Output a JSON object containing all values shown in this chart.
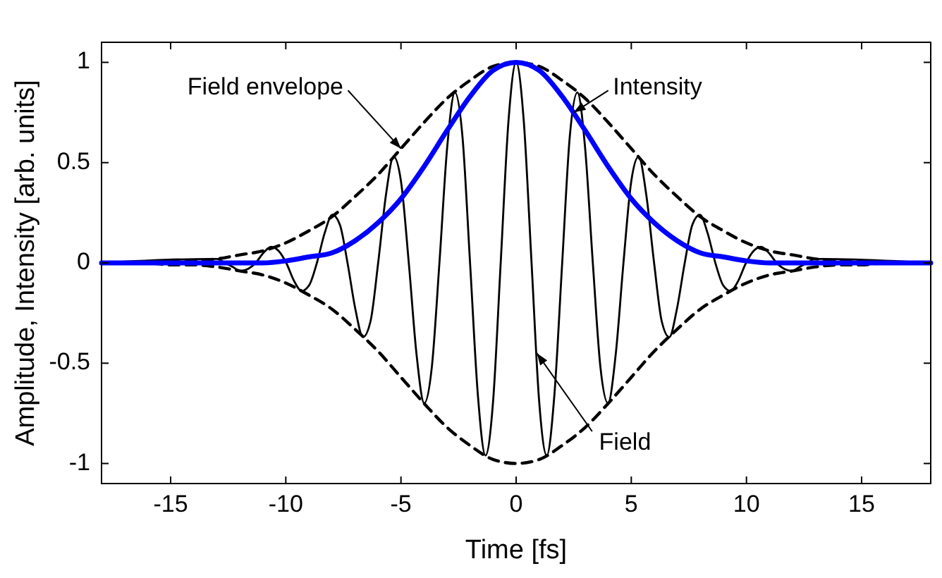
{
  "chart_data": {
    "type": "line",
    "xlabel": "Time [fs]",
    "ylabel": "Amplitude, Intensity [arb. units]",
    "xlim": [
      -18,
      18
    ],
    "ylim": [
      -1.1,
      1.1
    ],
    "xticks": [
      -15,
      -10,
      -5,
      0,
      5,
      10,
      15
    ],
    "yticks": [
      -1,
      -0.5,
      0,
      0.5,
      1
    ],
    "grid": false,
    "marker": "none",
    "annotations": [
      {
        "text": "Field envelope",
        "x": -5,
        "y": 0.57
      },
      {
        "text": "Intensity",
        "x": 2.5,
        "y": 0.75
      },
      {
        "text": "Field",
        "x": 0.9,
        "y": -0.45
      }
    ],
    "series": [
      {
        "color": "#000000",
        "line_style": "solid",
        "x": [
          -18,
          -13.3,
          -12.97,
          -12.64,
          -12.3,
          -11.97,
          -11.64,
          -11.31,
          -10.97,
          -10.64,
          -10.31,
          -9.98,
          -9.64,
          -9.31,
          -8.98,
          -8.65,
          -8.31,
          -7.98,
          -7.65,
          -7.32,
          -6.98,
          -6.65,
          -6.32,
          -5.99,
          -5.65,
          -5.32,
          -4.99,
          -4.66,
          -4.32,
          -3.99,
          -3.66,
          -3.33,
          -2.99,
          -2.66,
          -2.33,
          -2,
          -1.66,
          -1.33,
          -1,
          -0.67,
          -0.33,
          0,
          0.33,
          0.67,
          1,
          1.33,
          1.66,
          2,
          2.33,
          2.66,
          2.99,
          3.33,
          3.66,
          3.99,
          4.32,
          4.66,
          4.99,
          5.32,
          5.65,
          5.99,
          6.32,
          6.65,
          6.98,
          7.32,
          7.65,
          7.98,
          8.31,
          8.65,
          8.98,
          9.31,
          9.64,
          9.98,
          10.31,
          10.64,
          10.97,
          11.31,
          11.64,
          11.97,
          12.3,
          12.64,
          12.97,
          13.3,
          18
        ],
        "values": [
          0,
          0.02,
          0.02,
          0,
          -0.02,
          -0.04,
          -0.03,
          0,
          0.05,
          0.08,
          0.06,
          0,
          -0.09,
          -0.14,
          -0.11,
          0,
          0.15,
          0.24,
          0.19,
          0,
          -0.23,
          -0.37,
          -0.29,
          0,
          0.34,
          0.53,
          0.4,
          0,
          -0.46,
          -0.7,
          -0.52,
          0,
          0.58,
          0.85,
          0.63,
          0,
          -0.66,
          -0.96,
          -0.69,
          0,
          0.71,
          1,
          0.71,
          0,
          -0.69,
          -0.96,
          -0.66,
          0,
          0.63,
          0.85,
          0.58,
          0,
          -0.52,
          -0.7,
          -0.46,
          0,
          0.4,
          0.53,
          0.34,
          0,
          -0.29,
          -0.37,
          -0.23,
          0,
          0.19,
          0.24,
          0.15,
          0,
          -0.11,
          -0.14,
          -0.09,
          0,
          0.06,
          0.08,
          0.05,
          0,
          -0.03,
          -0.04,
          -0.02,
          0,
          0.02,
          0.02,
          0
        ]
      },
      {
        "color": "#000000",
        "line_style": "dashed",
        "x": [
          -18,
          -17,
          -16,
          -15,
          -14,
          -13,
          -12,
          -11,
          -10,
          -9,
          -8,
          -7,
          -6,
          -5,
          -4,
          -3,
          -2,
          -1,
          0,
          1,
          2,
          3,
          4,
          5,
          6,
          7,
          8,
          9,
          10,
          11,
          12,
          13,
          14,
          15,
          16,
          17,
          18,
          null,
          -18,
          -17,
          -16,
          -15,
          -14,
          -13,
          -12,
          -11,
          -10,
          -9,
          -8,
          -7,
          -6,
          -5,
          -4,
          -3,
          -2,
          -1,
          0,
          1,
          2,
          3,
          4,
          5,
          6,
          7,
          8,
          9,
          10,
          11,
          12,
          13,
          14,
          15,
          16,
          17,
          18
        ],
        "values": [
          0,
          0,
          0,
          0.01,
          0.01,
          0.02,
          0.04,
          0.06,
          0.1,
          0.16,
          0.23,
          0.33,
          0.44,
          0.57,
          0.7,
          0.82,
          0.91,
          0.98,
          1,
          0.98,
          0.91,
          0.82,
          0.7,
          0.57,
          0.44,
          0.33,
          0.23,
          0.16,
          0.1,
          0.06,
          0.04,
          0.02,
          0.01,
          0.01,
          0,
          0,
          0,
          null,
          0,
          0,
          0,
          -0.01,
          -0.01,
          -0.02,
          -0.04,
          -0.06,
          -0.1,
          -0.16,
          -0.23,
          -0.33,
          -0.44,
          -0.57,
          -0.7,
          -0.82,
          -0.91,
          -0.98,
          -1,
          -0.98,
          -0.91,
          -0.82,
          -0.7,
          -0.57,
          -0.44,
          -0.33,
          -0.23,
          -0.16,
          -0.1,
          -0.06,
          -0.04,
          -0.02,
          -0.01,
          -0.01,
          0,
          0,
          0
        ]
      },
      {
        "color": "#0000ff",
        "line_style": "solid",
        "x": [
          -18,
          -13,
          -12,
          -11,
          -10,
          -9,
          -8,
          -7,
          -6,
          -5,
          -4,
          -3,
          -2,
          -1,
          0,
          1,
          2,
          3,
          4,
          5,
          6,
          7,
          8,
          9,
          10,
          11,
          12,
          13,
          18
        ],
        "values": [
          0,
          0,
          0,
          0,
          0.01,
          0.03,
          0.05,
          0.11,
          0.2,
          0.32,
          0.48,
          0.66,
          0.83,
          0.96,
          1,
          0.96,
          0.83,
          0.66,
          0.48,
          0.32,
          0.2,
          0.11,
          0.05,
          0.03,
          0.01,
          0,
          0,
          0,
          0
        ]
      }
    ]
  }
}
